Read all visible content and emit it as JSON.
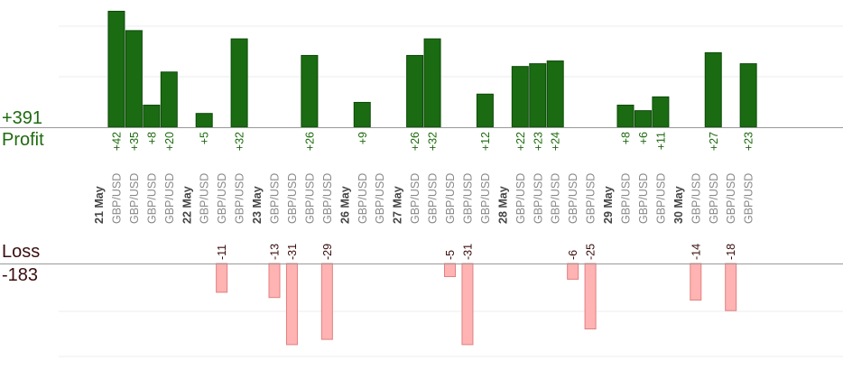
{
  "summary": {
    "profit_total": "+391",
    "profit_label": "Profit",
    "loss_label": "Loss",
    "loss_total": "-183"
  },
  "colors": {
    "profit_bar": "#1a6b12",
    "profit_bar_dark": "#0d4a08",
    "profit_text": "#1e6b0e",
    "loss_bar": "#ffb3b3",
    "loss_stroke": "#e08080",
    "loss_text": "#3a0d0d",
    "date_text": "#444444",
    "pair_text": "#888888",
    "baseline": "#999999",
    "grid": "#eeeeee"
  },
  "chart_data": {
    "type": "bar",
    "title": "",
    "xlabel": "",
    "ylabel": "",
    "profit_ylim": [
      0,
      50
    ],
    "loss_ylim": [
      -40,
      0
    ],
    "grid": true,
    "columns": [
      {
        "label": "21 May",
        "kind": "date"
      },
      {
        "label": "GBP/USD",
        "kind": "pair",
        "value": 42
      },
      {
        "label": "GBP/USD",
        "kind": "pair",
        "value": 35
      },
      {
        "label": "GBP/USD",
        "kind": "pair",
        "value": 8
      },
      {
        "label": "GBP/USD",
        "kind": "pair",
        "value": 20
      },
      {
        "label": "22 May",
        "kind": "date"
      },
      {
        "label": "GBP/USD",
        "kind": "pair",
        "value": 5
      },
      {
        "label": "GBP/USD",
        "kind": "pair",
        "value": -11
      },
      {
        "label": "GBP/USD",
        "kind": "pair",
        "value": 32
      },
      {
        "label": "23 May",
        "kind": "date"
      },
      {
        "label": "GBP/USD",
        "kind": "pair",
        "value": -13
      },
      {
        "label": "GBP/USD",
        "kind": "pair",
        "value": -31
      },
      {
        "label": "GBP/USD",
        "kind": "pair",
        "value": 26
      },
      {
        "label": "GBP/USD",
        "kind": "pair",
        "value": -29
      },
      {
        "label": "26 May",
        "kind": "date"
      },
      {
        "label": "GBP/USD",
        "kind": "pair",
        "value": 9
      },
      {
        "label": "GBP/USD",
        "kind": "pair"
      },
      {
        "label": "27 May",
        "kind": "date"
      },
      {
        "label": "GBP/USD",
        "kind": "pair",
        "value": 26
      },
      {
        "label": "GBP/USD",
        "kind": "pair",
        "value": 32
      },
      {
        "label": "GBP/USD",
        "kind": "pair",
        "value": -5
      },
      {
        "label": "GBP/USD",
        "kind": "pair",
        "value": -31
      },
      {
        "label": "GBP/USD",
        "kind": "pair",
        "value": 12
      },
      {
        "label": "28 May",
        "kind": "date"
      },
      {
        "label": "GBP/USD",
        "kind": "pair",
        "value": 22
      },
      {
        "label": "GBP/USD",
        "kind": "pair",
        "value": 23
      },
      {
        "label": "GBP/USD",
        "kind": "pair",
        "value": 24
      },
      {
        "label": "GBP/USD",
        "kind": "pair",
        "value": -6
      },
      {
        "label": "GBP/USD",
        "kind": "pair",
        "value": -25
      },
      {
        "label": "29 May",
        "kind": "date"
      },
      {
        "label": "GBP/USD",
        "kind": "pair",
        "value": 8
      },
      {
        "label": "GBP/USD",
        "kind": "pair",
        "value": 6
      },
      {
        "label": "GBP/USD",
        "kind": "pair",
        "value": 11
      },
      {
        "label": "30 May",
        "kind": "date"
      },
      {
        "label": "GBP/USD",
        "kind": "pair",
        "value": -14
      },
      {
        "label": "GBP/USD",
        "kind": "pair",
        "value": 27
      },
      {
        "label": "GBP/USD",
        "kind": "pair",
        "value": -18
      },
      {
        "label": "GBP/USD",
        "kind": "pair",
        "value": 23
      }
    ]
  }
}
